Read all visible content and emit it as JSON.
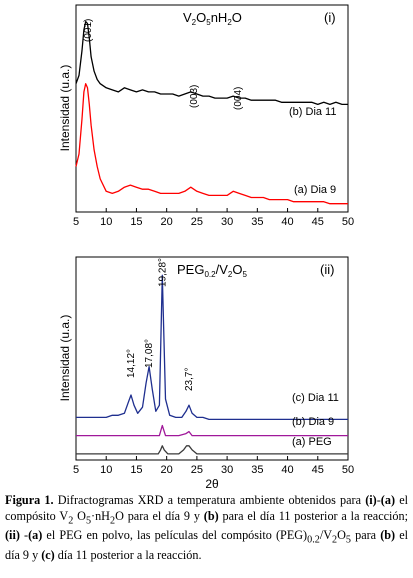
{
  "chart_data": [
    {
      "type": "line",
      "panel_label": "(i)",
      "title_parts": {
        "v": "V",
        "sub1": "2",
        "o": "O",
        "sub2": "5",
        "n": "nH",
        "sub3": "2",
        "o2": "O"
      },
      "xlabel": "",
      "ylabel": "Intensidad (u.a.)",
      "xlim": [
        5,
        50
      ],
      "xticks": [
        5,
        10,
        15,
        20,
        25,
        30,
        35,
        40,
        45,
        50
      ],
      "ylim": [
        0,
        100
      ],
      "yticks": false,
      "grid": false,
      "annotations": [
        {
          "text": "(001)",
          "x": 7.0,
          "rotate": true
        },
        {
          "text": "(003)",
          "x": 24.5,
          "rotate": true
        },
        {
          "text": "(004)",
          "x": 31.8,
          "rotate": true
        }
      ],
      "series": [
        {
          "name": "(b) Dia 11",
          "color": "#000000",
          "x": [
            5.0,
            5.5,
            6.0,
            6.3,
            6.6,
            6.9,
            7.2,
            7.5,
            8.0,
            8.5,
            9.0,
            10.0,
            11.0,
            12.0,
            13.0,
            14.0,
            15.0,
            16.0,
            17.0,
            18.0,
            19.0,
            20.0,
            21.0,
            22.0,
            23.0,
            24.0,
            25.0,
            26.0,
            27.0,
            28.0,
            29.0,
            30.0,
            31.0,
            32.0,
            33.0,
            34.0,
            35.0,
            36.0,
            37.0,
            38.0,
            39.0,
            40.0,
            41.0,
            42.0,
            43.0,
            44.0,
            45.0,
            46.0,
            47.0,
            48.0,
            49.0,
            50.0
          ],
          "y": [
            62,
            66,
            78,
            88,
            92,
            91,
            84,
            75,
            68,
            64,
            62,
            60,
            59,
            58,
            60,
            59,
            58,
            59,
            58,
            58,
            57,
            57,
            57,
            56,
            57,
            58,
            57,
            56,
            56,
            55,
            55,
            55,
            56,
            55,
            55,
            54,
            54,
            54,
            54,
            54,
            53,
            53,
            53,
            53,
            53,
            53,
            52,
            53,
            52,
            53,
            52,
            52
          ]
        },
        {
          "name": "(a) Dia 9",
          "color": "#ff0000",
          "x": [
            5.0,
            5.5,
            6.0,
            6.3,
            6.6,
            6.9,
            7.2,
            7.5,
            8.0,
            8.5,
            9.0,
            10.0,
            11.0,
            12.0,
            13.0,
            14.0,
            15.0,
            16.0,
            17.0,
            18.0,
            19.0,
            20.0,
            21.0,
            22.0,
            23.0,
            24.0,
            25.0,
            26.0,
            27.0,
            28.0,
            29.0,
            30.0,
            31.0,
            32.0,
            33.0,
            34.0,
            35.0,
            36.0,
            37.0,
            38.0,
            39.0,
            40.0,
            41.0,
            42.0,
            43.0,
            44.0,
            45.0,
            46.0,
            47.0,
            48.0,
            49.0,
            50.0
          ],
          "y": [
            22,
            28,
            45,
            58,
            62,
            60,
            52,
            42,
            30,
            22,
            16,
            10,
            9,
            10,
            12,
            13,
            12,
            11,
            11,
            10,
            9,
            9,
            9,
            9,
            10,
            12,
            10,
            9,
            8,
            8,
            8,
            8,
            10,
            9,
            8,
            7,
            7,
            7,
            6,
            6,
            6,
            6,
            5,
            5,
            5,
            5,
            5,
            5,
            4,
            4,
            4,
            4
          ]
        }
      ]
    },
    {
      "type": "line",
      "panel_label": "(ii)",
      "title_parts": {
        "peg": "PEG",
        "sub1": "0.2",
        "slash": "/V",
        "sub2": "2",
        "o": "O",
        "sub3": "5"
      },
      "xlabel": "2θ",
      "ylabel": "Intensidad (u.a.)",
      "xlim": [
        5,
        50
      ],
      "xticks": [
        5,
        10,
        15,
        20,
        25,
        30,
        35,
        40,
        45,
        50
      ],
      "ylim": [
        0,
        100
      ],
      "yticks": false,
      "grid": false,
      "annotations": [
        {
          "text": "14,12°",
          "x": 14.1,
          "rotate": true
        },
        {
          "text": "17,08°",
          "x": 17.1,
          "rotate": true
        },
        {
          "text": "19,28°",
          "x": 19.3,
          "rotate": true
        },
        {
          "text": "23,7°",
          "x": 23.7,
          "rotate": true
        }
      ],
      "series": [
        {
          "name": "(c) Dia 11",
          "color": "#1f2f8f",
          "x": [
            5,
            6,
            7,
            8,
            9,
            10,
            11,
            12,
            13,
            13.6,
            14.1,
            14.6,
            15.2,
            16.0,
            16.6,
            17.1,
            17.6,
            18.2,
            18.8,
            19.28,
            19.8,
            20.5,
            21.5,
            22.5,
            23.2,
            23.7,
            24.2,
            25,
            26,
            27,
            28,
            29,
            30,
            32,
            34,
            36,
            38,
            40,
            42,
            44,
            46,
            48,
            50
          ],
          "y": [
            21,
            21,
            21,
            21,
            21,
            21,
            22,
            22,
            23,
            28,
            32,
            27,
            23,
            26,
            38,
            46,
            35,
            24,
            27,
            91,
            30,
            22,
            21,
            21,
            24,
            27,
            23,
            21,
            21,
            20,
            20,
            20,
            20,
            20,
            20,
            20,
            20,
            20,
            20,
            20,
            20,
            20,
            20
          ]
        },
        {
          "name": "(b) Dia 9",
          "color": "#a0189a",
          "x": [
            5,
            10,
            15,
            18.8,
            19.28,
            19.8,
            22,
            23.2,
            23.7,
            24.2,
            26,
            30,
            35,
            40,
            45,
            50
          ],
          "y": [
            12,
            12,
            12,
            12,
            17,
            12,
            12,
            13,
            14,
            12,
            12,
            12,
            12,
            12,
            12,
            12
          ]
        },
        {
          "name": "(a) PEG",
          "color": "#3a3a3a",
          "x": [
            5,
            10,
            15,
            18.6,
            19.0,
            19.28,
            19.6,
            20.2,
            22.0,
            22.8,
            23.3,
            23.7,
            24.2,
            25.0,
            27,
            30,
            35,
            40,
            45,
            50
          ],
          "y": [
            3,
            3,
            3,
            3,
            5,
            7,
            5,
            3,
            3,
            5,
            7,
            7,
            5,
            3,
            3,
            3,
            3,
            3,
            3,
            3
          ]
        }
      ]
    }
  ],
  "caption": {
    "label": "Figura 1.",
    "t1": " Difractogramas XRD a temperatura ambiente obtenidos para ",
    "i": "(i)",
    "t2": "-",
    "a1": "(a)",
    "t3": " el compósito V",
    "s1": "2",
    "t4": " O",
    "s2": "5",
    "t5": "·nH",
    "s3": "2",
    "t6": "O para el día 9 y ",
    "b1": "(b)",
    "t7": " para el día 11 posterior a la reacción; ",
    "ii": "(ii)",
    "t8": " -",
    "a2": "(a)",
    "t9": " el PEG en polvo, las películas del compósito (PEG)",
    "s4": "0.2",
    "t10": "/V",
    "s5": "2",
    "t11": "O",
    "s6": "5",
    "t12": " para ",
    "b2": "(b)",
    "t13": " el día 9 y ",
    "c1": "(c)",
    "t14": " día 11 posterior a la reacción."
  }
}
